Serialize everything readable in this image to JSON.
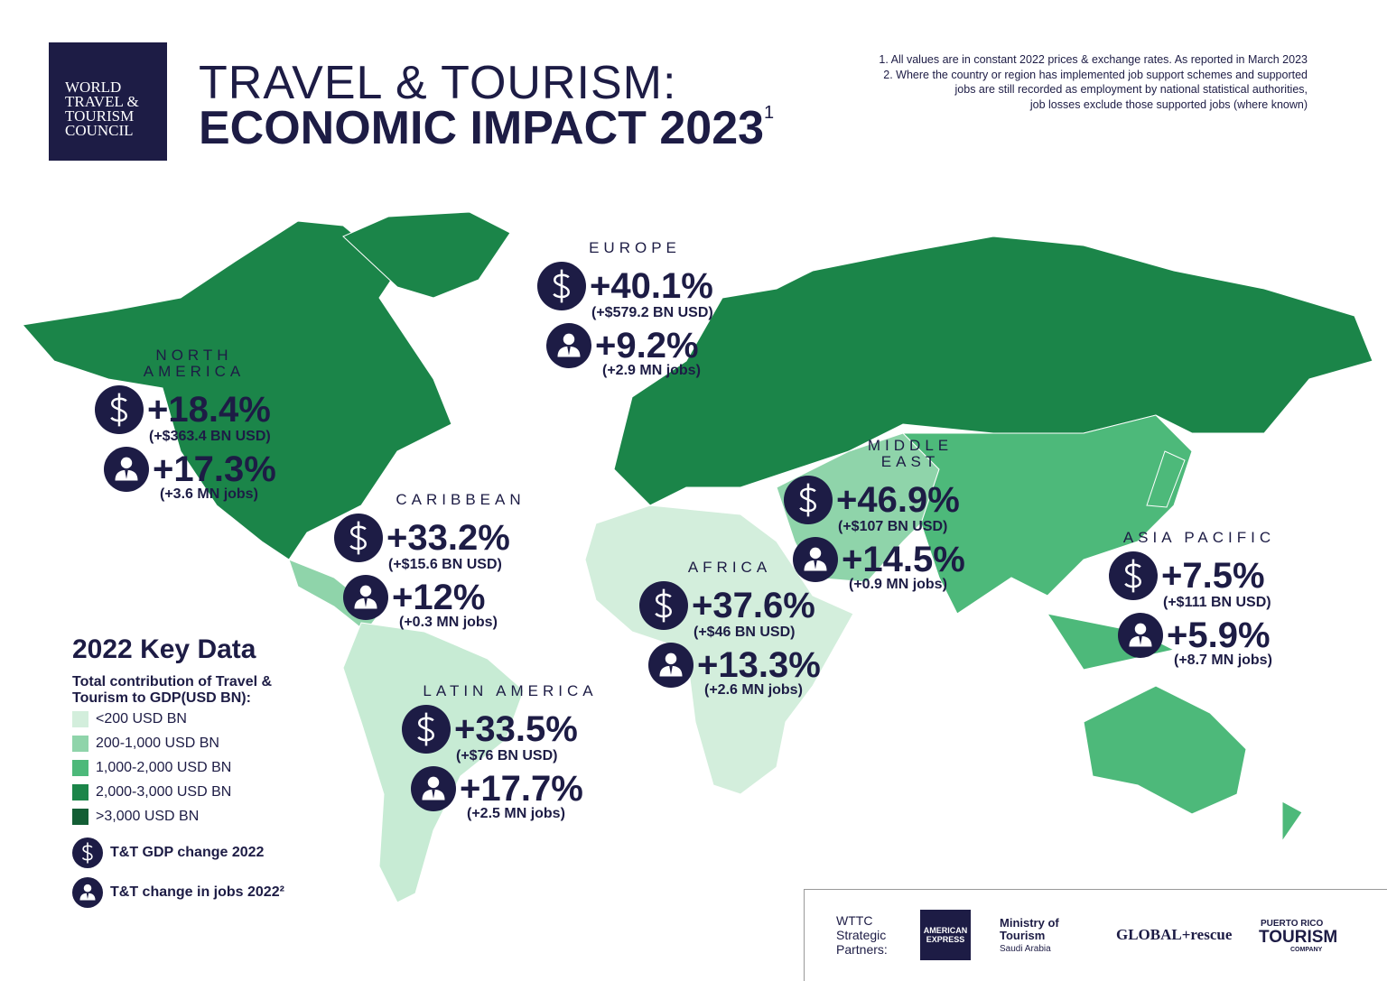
{
  "logo": {
    "lines": [
      "WORLD",
      "TRAVEL &",
      "TOURISM",
      "COUNCIL"
    ]
  },
  "header": {
    "title_line1": "TRAVEL & TOURISM:",
    "title_line2": "ECONOMIC IMPACT 2023",
    "title_sup": "1"
  },
  "notes": [
    "1. All values are in constant 2022 prices & exchange rates. As reported in March 2023",
    "2. Where the country or region has implemented job support schemes and supported",
    "jobs are still recorded as employment by national statistical authorities,",
    "job losses exclude those supported jobs (where known)"
  ],
  "regions": [
    {
      "name": "EUROPE",
      "gdp_change": "+40.1%",
      "gdp_detail": "(+$579.2 BN USD)",
      "jobs_change": "+9.2%",
      "jobs_detail": "(+2.9 MN jobs)"
    },
    {
      "name": "NORTH AMERICA",
      "gdp_change": "+18.4%",
      "gdp_detail": "(+$363.4 BN USD)",
      "jobs_change": "+17.3%",
      "jobs_detail": "(+3.6 MN jobs)"
    },
    {
      "name": "CARIBBEAN",
      "gdp_change": "+33.2%",
      "gdp_detail": "(+$15.6 BN USD)",
      "jobs_change": "+12%",
      "jobs_detail": "(+0.3 MN jobs)"
    },
    {
      "name": "LATIN AMERICA",
      "gdp_change": "+33.5%",
      "gdp_detail": "(+$76 BN USD)",
      "jobs_change": "+17.7%",
      "jobs_detail": "(+2.5 MN jobs)"
    },
    {
      "name": "AFRICA",
      "gdp_change": "+37.6%",
      "gdp_detail": "(+$46 BN USD)",
      "jobs_change": "+13.3%",
      "jobs_detail": "(+2.6 MN jobs)"
    },
    {
      "name": "MIDDLE EAST",
      "gdp_change": "+46.9%",
      "gdp_detail": "(+$107 BN USD)",
      "jobs_change": "+14.5%",
      "jobs_detail": "(+0.9 MN jobs)"
    },
    {
      "name": "ASIA PACIFIC",
      "gdp_change": "+7.5%",
      "gdp_detail": "(+$111 BN USD)",
      "jobs_change": "+5.9%",
      "jobs_detail": "(+8.7 MN jobs)"
    }
  ],
  "key": {
    "title": "2022 Key Data",
    "subtitle": "Total contribution of Travel & Tourism to GDP(USD BN):",
    "buckets": [
      {
        "label": "<200 USD BN",
        "color": "#d3eedc"
      },
      {
        "label": "200-1,000 USD BN",
        "color": "#8fd4aa"
      },
      {
        "label": "1,000-2,000 USD BN",
        "color": "#4db97a"
      },
      {
        "label": "2,000-3,000 USD BN",
        "color": "#1b8549"
      },
      {
        "label": ">3,000 USD BN",
        "color": "#135e35"
      }
    ],
    "gdp_icon_label": "T&T GDP change 2022",
    "jobs_icon_label": "T&T change in jobs 2022²"
  },
  "partners": {
    "label": "WTTC Strategic Partners:",
    "amex": "AMERICAN EXPRESS",
    "ministry": "Ministry of Tourism",
    "ministry_sub": "Saudi Arabia",
    "global_rescue": "GLOBAL+rescue",
    "pr_top": "PUERTO RICO",
    "pr_main": "TOURISM",
    "pr_sub": "COMPANY"
  }
}
